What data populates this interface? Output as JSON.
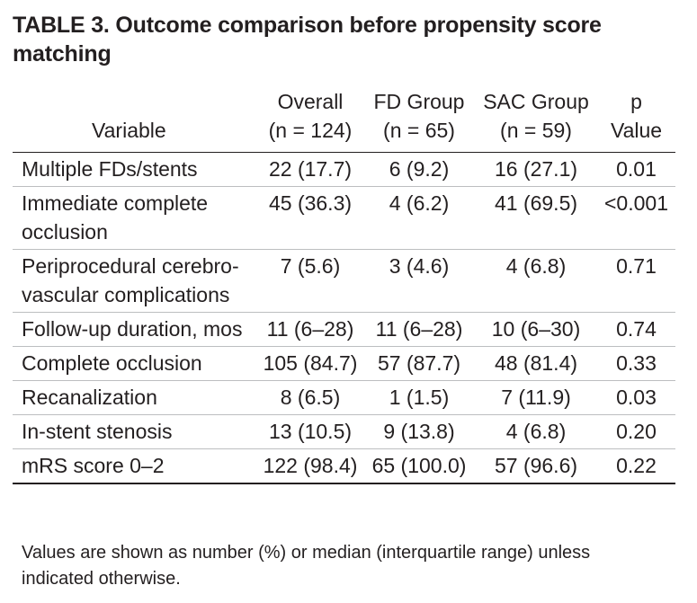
{
  "title": "TABLE 3. Outcome comparison before propensity score matching",
  "columns": {
    "variable": "Variable",
    "overall": {
      "label": "Overall",
      "n": "(n = 124)"
    },
    "fd": {
      "label": "FD Group",
      "n": "(n = 65)"
    },
    "sac": {
      "label": "SAC Group",
      "n": "(n = 59)"
    },
    "p": {
      "label": "p",
      "sub": "Value"
    }
  },
  "rows": [
    {
      "variable": "Multiple FDs/stents",
      "overall": "22 (17.7)",
      "fd": "6 (9.2)",
      "sac": "16 (27.1)",
      "p": "0.01"
    },
    {
      "variable": "Immediate complete occlusion",
      "overall": "45 (36.3)",
      "fd": "4 (6.2)",
      "sac": "41 (69.5)",
      "p": "<0.001"
    },
    {
      "variable": "Periprocedural cerebro-vascular complications",
      "overall": "7 (5.6)",
      "fd": "3 (4.6)",
      "sac": "4 (6.8)",
      "p": "0.71"
    },
    {
      "variable": "Follow-up duration, mos",
      "overall": "11 (6–28)",
      "fd": "11 (6–28)",
      "sac": "10 (6–30)",
      "p": "0.74"
    },
    {
      "variable": "Complete occlusion",
      "overall": "105 (84.7)",
      "fd": "57 (87.7)",
      "sac": "48 (81.4)",
      "p": "0.33"
    },
    {
      "variable": "Recanalization",
      "overall": "8 (6.5)",
      "fd": "1 (1.5)",
      "sac": "7 (11.9)",
      "p": "0.03"
    },
    {
      "variable": "In-stent stenosis",
      "overall": "13 (10.5)",
      "fd": "9 (13.8)",
      "sac": "4 (6.8)",
      "p": "0.20"
    },
    {
      "variable": "mRS score 0–2",
      "overall": "122 (98.4)",
      "fd": "65 (100.0)",
      "sac": "57 (96.6)",
      "p": "0.22"
    }
  ],
  "footnote": "Values are shown as number (%) or median (interquartile range) unless indicated otherwise."
}
